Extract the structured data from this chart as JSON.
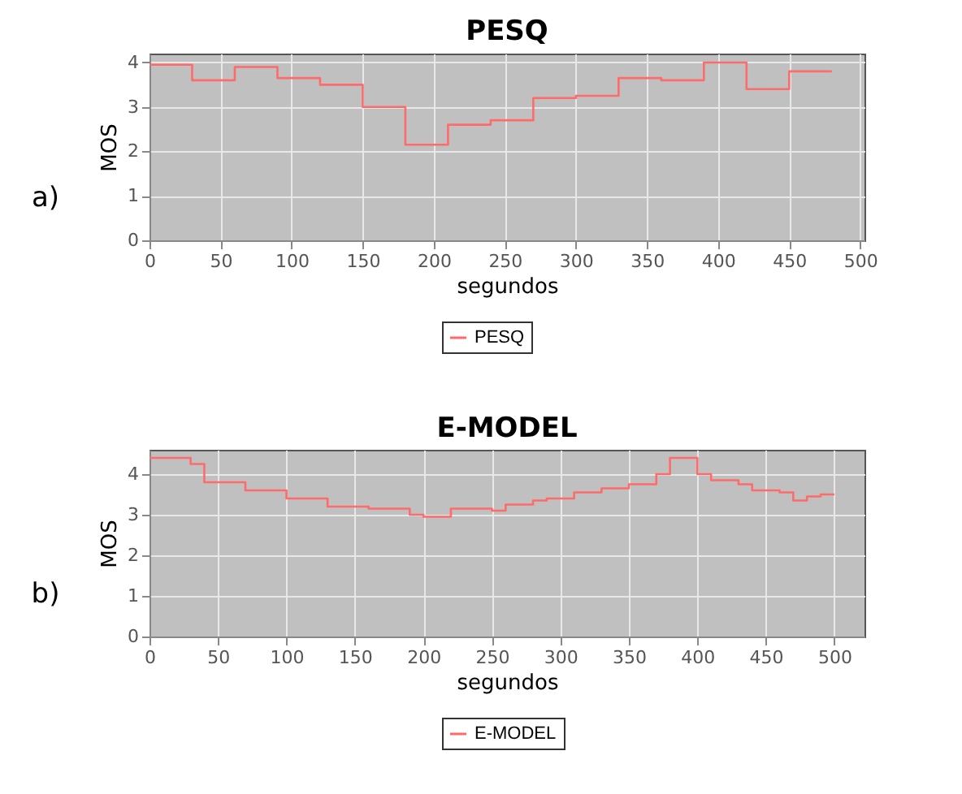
{
  "chart_data": [
    {
      "type": "step",
      "title": "PESQ",
      "xlabel": "segundos",
      "ylabel": "MOS",
      "annotations": [
        "a)"
      ],
      "series": [
        {
          "name": "PESQ",
          "color": "#ff6b6b",
          "x": [
            0,
            30,
            60,
            90,
            120,
            150,
            180,
            210,
            240,
            270,
            300,
            330,
            360,
            390,
            420,
            450,
            480
          ],
          "values": [
            3.95,
            3.6,
            3.9,
            3.65,
            3.5,
            3.0,
            2.15,
            2.6,
            2.7,
            3.2,
            3.25,
            3.65,
            3.6,
            4.0,
            3.4,
            3.8,
            3.8
          ]
        }
      ],
      "xlim": [
        0,
        503
      ],
      "xticks": [
        0,
        50,
        100,
        150,
        200,
        250,
        300,
        350,
        400,
        450,
        500
      ],
      "ylim": [
        0,
        4.2
      ],
      "yticks": [
        0,
        1,
        2,
        3,
        4
      ],
      "grid": true,
      "legend": "bottom",
      "marker": "none"
    },
    {
      "type": "step",
      "title": "E-MODEL",
      "xlabel": "segundos",
      "ylabel": "MOS",
      "annotations": [
        "b)"
      ],
      "series": [
        {
          "name": "E-MODEL",
          "color": "#ff6b6b",
          "x": [
            0,
            30,
            40,
            70,
            100,
            130,
            160,
            190,
            200,
            220,
            250,
            260,
            280,
            290,
            310,
            330,
            350,
            370,
            380,
            400,
            410,
            430,
            440,
            460,
            470,
            480,
            490,
            500
          ],
          "values": [
            4.4,
            4.25,
            3.8,
            3.6,
            3.4,
            3.2,
            3.15,
            3.0,
            2.95,
            3.15,
            3.1,
            3.25,
            3.35,
            3.4,
            3.55,
            3.65,
            3.75,
            4.0,
            4.4,
            4.0,
            3.85,
            3.75,
            3.6,
            3.55,
            3.35,
            3.45,
            3.5,
            3.5
          ]
        }
      ],
      "xlim": [
        0,
        522
      ],
      "xticks": [
        0,
        50,
        100,
        150,
        200,
        250,
        300,
        350,
        400,
        450,
        500
      ],
      "ylim": [
        0,
        4.6
      ],
      "yticks": [
        0,
        1,
        2,
        3,
        4
      ],
      "grid": true,
      "legend": "bottom",
      "marker": "none"
    }
  ]
}
